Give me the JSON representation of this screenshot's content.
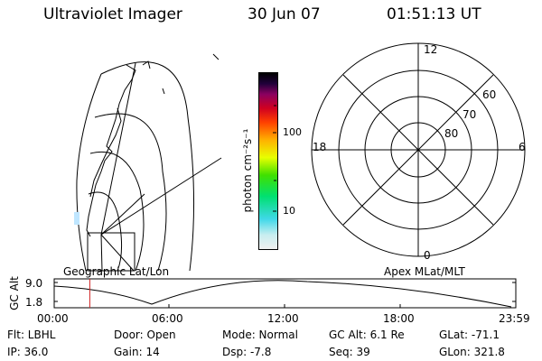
{
  "header": {
    "title": "Ultraviolet Imager",
    "date": "30 Jun 07",
    "time": "01:51:13 UT"
  },
  "geo_panel": {
    "label": "Geographic Lat/Lon"
  },
  "colorbar": {
    "unit_label": "photon cm⁻²s⁻¹",
    "ticks": [
      "100",
      "10"
    ],
    "scale": "log"
  },
  "polar_plot": {
    "label": "Apex MLat/MLT",
    "mlt_labels": [
      "12",
      "18",
      "6",
      "0"
    ],
    "lat_labels": [
      "60",
      "70",
      "80"
    ]
  },
  "orbit": {
    "ylabel": "GC Alt",
    "yticks": [
      "9.0",
      "1.8"
    ],
    "xticks": [
      "00:00",
      "06:00",
      "12:00",
      "18:00",
      "23:59"
    ],
    "current_time_marker_hours": 1.85
  },
  "info": {
    "filter": "Flt: LBHL",
    "door": "Door: Open",
    "mode": "Mode: Normal",
    "gc_alt": "GC Alt: 6.1 Re",
    "glat": "GLat: -71.1",
    "ip": "IP: 36.0",
    "gain": "Gain: 14",
    "dsp": "Dsp:   -7.8",
    "seq": "Seq: 39",
    "glon": "GLon: 321.8"
  },
  "colors": {
    "colorbar_gradient": [
      "#f0f0f0",
      "#7fe8ef",
      "#00d400",
      "#e8ff00",
      "#ffb000",
      "#ff2000",
      "#b00030",
      "#20003a",
      "#000000"
    ],
    "time_marker": "#d02020"
  }
}
